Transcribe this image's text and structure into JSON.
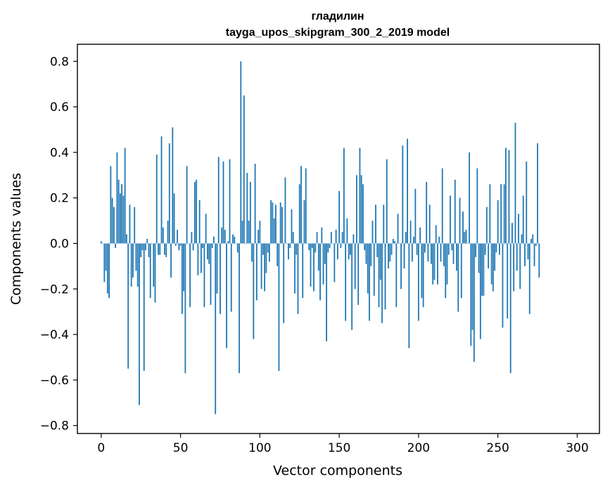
{
  "chart_data": {
    "type": "bar",
    "title": "гладилин",
    "subtitle": "tayga_upos_skipgram_300_2_2019 model",
    "xlabel": "Vector components",
    "ylabel": "Components values",
    "xlim": [
      -15,
      314
    ],
    "ylim": [
      -0.835,
      0.875
    ],
    "xticks": [
      0,
      50,
      100,
      150,
      200,
      250,
      300
    ],
    "yticks": [
      -0.8,
      -0.6,
      -0.4,
      -0.2,
      0.0,
      0.2,
      0.4,
      0.6,
      0.8
    ],
    "ytick_labels": [
      "−0.8",
      "−0.6",
      "−0.4",
      "−0.2",
      "0.0",
      "0.2",
      "0.4",
      "0.6",
      "0.8"
    ],
    "bar_color": "#1f77b4",
    "grid": false,
    "values": [
      0.01,
      0.0,
      -0.17,
      -0.12,
      -0.22,
      -0.24,
      0.34,
      0.2,
      0.16,
      -0.02,
      0.4,
      0.28,
      0.22,
      0.26,
      0.21,
      0.42,
      0.04,
      -0.55,
      0.17,
      -0.19,
      -0.15,
      0.16,
      -0.12,
      -0.19,
      -0.71,
      -0.06,
      -0.03,
      -0.56,
      -0.03,
      0.02,
      -0.06,
      -0.24,
      0.0,
      -0.19,
      -0.26,
      0.39,
      -0.05,
      -0.05,
      0.47,
      0.07,
      -0.05,
      -0.06,
      0.1,
      0.44,
      -0.15,
      0.51,
      0.22,
      -0.01,
      0.06,
      -0.03,
      -0.01,
      -0.31,
      -0.21,
      -0.57,
      0.34,
      0.0,
      -0.28,
      0.05,
      -0.03,
      0.27,
      0.28,
      -0.14,
      0.19,
      -0.13,
      -0.02,
      -0.28,
      0.13,
      -0.07,
      -0.09,
      -0.27,
      -0.02,
      0.03,
      -0.75,
      -0.22,
      0.38,
      -0.31,
      0.07,
      0.36,
      0.06,
      -0.46,
      0.01,
      0.37,
      -0.3,
      0.04,
      0.03,
      0.0,
      -0.04,
      -0.57,
      0.8,
      0.1,
      0.65,
      0.0,
      0.31,
      0.1,
      0.27,
      -0.08,
      -0.42,
      0.35,
      -0.25,
      0.06,
      0.1,
      -0.2,
      -0.05,
      -0.21,
      -0.13,
      -0.04,
      -0.08,
      0.19,
      0.18,
      0.11,
      0.17,
      -0.1,
      -0.56,
      0.18,
      0.16,
      -0.35,
      0.29,
      0.0,
      -0.07,
      -0.02,
      0.15,
      0.05,
      -0.22,
      -0.05,
      -0.31,
      0.26,
      0.34,
      -0.24,
      0.19,
      0.33,
      0.0,
      -0.03,
      -0.19,
      -0.02,
      -0.21,
      -0.04,
      0.05,
      -0.12,
      -0.25,
      0.07,
      -0.18,
      -0.09,
      -0.43,
      -0.04,
      -0.02,
      0.05,
      0.0,
      -0.17,
      0.06,
      -0.07,
      0.23,
      -0.02,
      0.05,
      0.42,
      -0.34,
      0.11,
      -0.07,
      -0.05,
      -0.38,
      0.04,
      -0.2,
      0.3,
      -0.27,
      0.42,
      0.3,
      0.26,
      -0.03,
      -0.09,
      -0.22,
      -0.34,
      -0.1,
      0.1,
      -0.23,
      0.17,
      -0.06,
      -0.28,
      -0.16,
      -0.35,
      0.17,
      -0.29,
      0.37,
      -0.11,
      -0.08,
      -0.05,
      0.02,
      0.01,
      -0.28,
      0.13,
      0.0,
      -0.2,
      0.43,
      -0.11,
      0.05,
      0.46,
      -0.46,
      0.1,
      -0.08,
      0.03,
      0.24,
      -0.05,
      -0.34,
      0.07,
      -0.24,
      -0.28,
      -0.04,
      0.27,
      -0.08,
      0.17,
      -0.09,
      -0.18,
      -0.16,
      0.08,
      -0.18,
      0.03,
      -0.08,
      0.33,
      -0.1,
      -0.24,
      -0.18,
      -0.05,
      0.21,
      -0.03,
      -0.09,
      0.28,
      -0.12,
      -0.3,
      0.2,
      -0.24,
      0.14,
      0.05,
      0.06,
      0.0,
      0.4,
      -0.45,
      -0.38,
      -0.52,
      -0.06,
      0.33,
      -0.13,
      -0.42,
      -0.23,
      -0.23,
      -0.05,
      0.16,
      -0.11,
      0.26,
      -0.18,
      -0.21,
      -0.12,
      -0.04,
      0.19,
      -0.05,
      0.26,
      -0.37,
      0.26,
      0.42,
      -0.33,
      0.41,
      -0.57,
      0.09,
      -0.21,
      0.53,
      -0.12,
      0.13,
      -0.2,
      0.04,
      0.21,
      -0.1,
      0.36,
      -0.07,
      -0.31,
      0.02,
      0.04,
      -0.1,
      -0.01,
      0.44,
      -0.15
    ]
  }
}
